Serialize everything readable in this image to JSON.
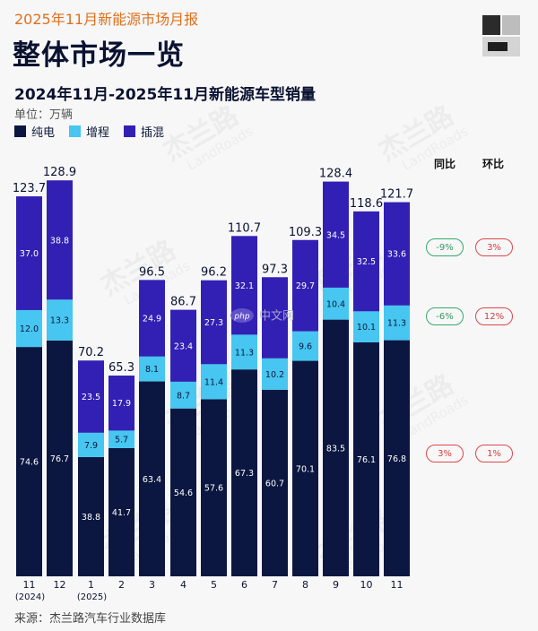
{
  "header": {
    "topline": "2025年11月新能源市场月报",
    "title": "整体市场一览",
    "subtitle": "2024年11月-2025年11月新能源车型销量",
    "unit": "单位：万辆"
  },
  "legend": [
    {
      "name": "纯电",
      "color": "#0b1740"
    },
    {
      "name": "增程",
      "color": "#46c6f0"
    },
    {
      "name": "插混",
      "color": "#3220b4"
    }
  ],
  "chart_data": {
    "type": "bar",
    "stacked": true,
    "title": "2024年11月-2025年11月新能源车型销量",
    "ylabel": "单位：万辆",
    "categories": [
      "11",
      "12",
      "1",
      "2",
      "3",
      "4",
      "5",
      "6",
      "7",
      "8",
      "9",
      "10",
      "11"
    ],
    "category_sublabels": [
      "(2024)",
      "",
      "(2025)",
      "",
      "",
      "",
      "",
      "",
      "",
      "",
      "",
      "",
      ""
    ],
    "series": [
      {
        "name": "纯电",
        "values": [
          74.6,
          76.7,
          38.8,
          41.7,
          63.4,
          54.6,
          57.6,
          67.3,
          60.7,
          70.1,
          83.5,
          76.1,
          76.8
        ]
      },
      {
        "name": "增程",
        "values": [
          12.0,
          13.3,
          7.9,
          5.7,
          8.1,
          8.7,
          11.4,
          11.3,
          10.2,
          9.6,
          10.4,
          10.1,
          11.3
        ]
      },
      {
        "name": "插混",
        "values": [
          37.0,
          38.8,
          23.5,
          17.9,
          24.9,
          23.4,
          27.3,
          32.1,
          26.4,
          29.7,
          34.5,
          32.5,
          33.6
        ]
      }
    ],
    "segment_labels": [
      [
        "74.6",
        "76.7",
        "38.8",
        "41.7",
        "63.4",
        "54.6",
        "57.6",
        "67.3",
        "60.7",
        "70.1",
        "83.5",
        "76.1",
        "76.8"
      ],
      [
        "12.0",
        "13.3",
        "7.9",
        "5.7",
        "8.1",
        "8.7",
        "11.4",
        "11.3",
        "10.2",
        "9.6",
        "10.4",
        "10.1",
        "11.3"
      ],
      [
        "37.0",
        "38.8",
        "23.5",
        "17.9",
        "24.9",
        "23.4",
        "27.3",
        "32.1",
        "",
        "29.7",
        "34.5",
        "32.5",
        "33.6"
      ]
    ],
    "totals": [
      123.7,
      128.9,
      70.2,
      65.3,
      96.5,
      86.7,
      96.2,
      110.7,
      97.3,
      109.3,
      128.4,
      118.6,
      121.7
    ],
    "ylim": [
      0,
      136
    ],
    "grid": false,
    "legend_position": "top-left"
  },
  "comparisons": {
    "yoy_label": "同比",
    "mom_label": "环比",
    "rows": [
      {
        "series": "插混",
        "yoy": "-9%",
        "yoy_color": "#2f9a5b",
        "mom": "3%",
        "mom_color": "#d63c3c"
      },
      {
        "series": "增程",
        "yoy": "-6%",
        "yoy_color": "#2f9a5b",
        "mom": "12%",
        "mom_color": "#d63c3c"
      },
      {
        "series": "纯电",
        "yoy": "3%",
        "yoy_color": "#d63c3c",
        "mom": "1%",
        "mom_color": "#d63c3c"
      }
    ]
  },
  "watermark": {
    "text": "杰兰路",
    "subtext": "LandRoads",
    "site_text": "中文网"
  },
  "footer": {
    "source": "来源：杰兰路汽车行业数据库"
  }
}
